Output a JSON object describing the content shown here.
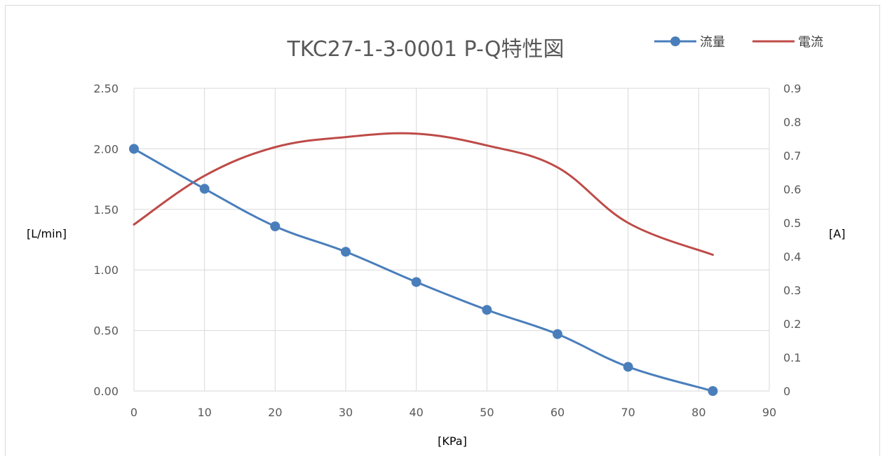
{
  "chart_data": {
    "type": "line",
    "title": "TKC27-1-3-0001 P-Q特性図",
    "xlabel": "[KPa]",
    "ylabel": "[L/min]",
    "y2label": "[A]",
    "xlim": [
      0,
      90
    ],
    "ylim": [
      0,
      2.5
    ],
    "y2lim": [
      0,
      0.9
    ],
    "x_ticks": [
      0,
      10,
      20,
      30,
      40,
      50,
      60,
      70,
      80,
      90
    ],
    "y_ticks": [
      0,
      0.5,
      1.0,
      1.5,
      2.0,
      2.5
    ],
    "y_tick_labels": [
      "0.00",
      "0.50",
      "1.00",
      "1.50",
      "2.00",
      "2.50"
    ],
    "y2_ticks": [
      0,
      0.1,
      0.2,
      0.3,
      0.4,
      0.5,
      0.6,
      0.7,
      0.8,
      0.9
    ],
    "y2_tick_labels": [
      "0",
      "0.1",
      "0.2",
      "0.3",
      "0.4",
      "0.5",
      "0.6",
      "0.7",
      "0.8",
      "0.9"
    ],
    "grid": true,
    "legend_position": "top-right",
    "series": [
      {
        "name": "流量",
        "axis": "left",
        "color": "#4a7ebb",
        "marker": "circle",
        "x": [
          0,
          10,
          20,
          30,
          40,
          50,
          60,
          70,
          82
        ],
        "y": [
          2.0,
          1.67,
          1.36,
          1.15,
          0.9,
          0.67,
          0.47,
          0.2,
          0.0
        ]
      },
      {
        "name": "電流",
        "axis": "right",
        "color": "#be4b48",
        "marker": "none",
        "x": [
          0,
          10,
          20,
          30,
          40,
          50,
          60,
          70,
          82
        ],
        "y": [
          0.495,
          0.64,
          0.725,
          0.755,
          0.765,
          0.73,
          0.665,
          0.5,
          0.405
        ]
      }
    ]
  }
}
